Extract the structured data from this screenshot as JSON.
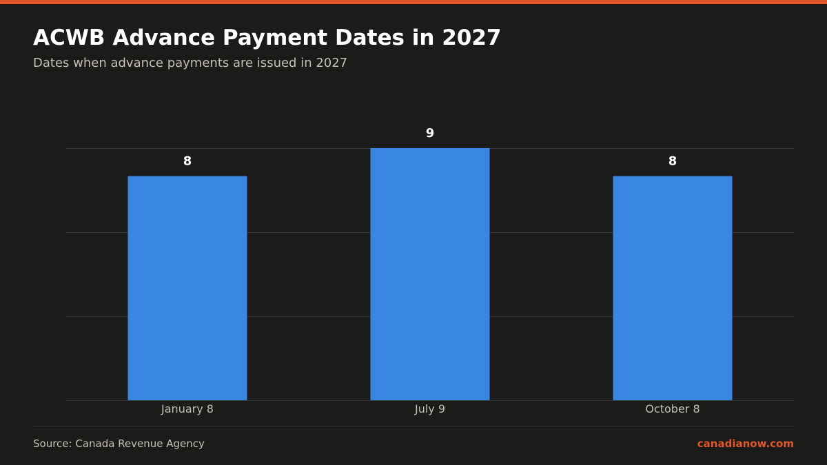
{
  "header": {
    "title": "ACWB Advance Payment Dates in 2027",
    "subtitle": "Dates when advance payments are issued in 2027"
  },
  "footer": {
    "source": "Source: Canada Revenue Agency",
    "brand": "canadianow.com"
  },
  "colors": {
    "accent": "#e0572a",
    "bar": "#3987e3",
    "background": "#1b1b1a"
  },
  "chart_data": {
    "type": "bar",
    "categories": [
      "January 8",
      "July 9",
      "October 8"
    ],
    "values": [
      8,
      9,
      8
    ],
    "title": "ACWB Advance Payment Dates in 2027",
    "subtitle": "Dates when advance payments are issued in 2027",
    "xlabel": "",
    "ylabel": "",
    "ylim": [
      0,
      9
    ],
    "grid": true,
    "data_labels": true,
    "legend": "none"
  }
}
